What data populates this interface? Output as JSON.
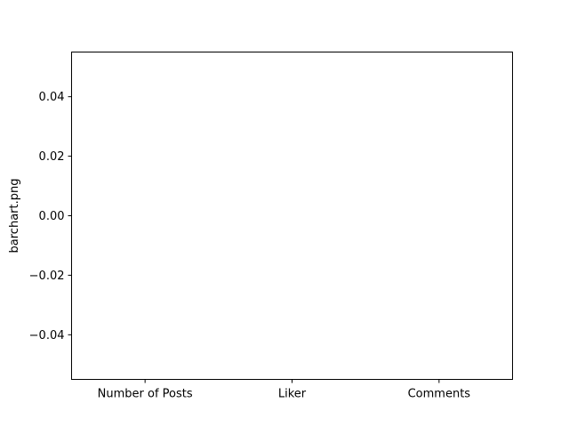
{
  "chart_data": {
    "type": "bar",
    "title": "",
    "xlabel": "",
    "ylabel": "barchart.png",
    "categories": [
      "Number of Posts",
      "Liker",
      "Comments"
    ],
    "values": [
      0,
      0,
      0
    ],
    "ylim": [
      -0.055,
      0.055
    ],
    "yticks": [
      {
        "value": 0.04,
        "label": "0.04"
      },
      {
        "value": 0.02,
        "label": "0.02"
      },
      {
        "value": 0.0,
        "label": "0.00"
      },
      {
        "value": -0.02,
        "label": "−0.02"
      },
      {
        "value": -0.04,
        "label": "−0.04"
      }
    ],
    "grid": false,
    "legend": "none",
    "colors": {
      "axes": "#000000",
      "background": "#ffffff",
      "bar": "#1f77b4"
    }
  }
}
